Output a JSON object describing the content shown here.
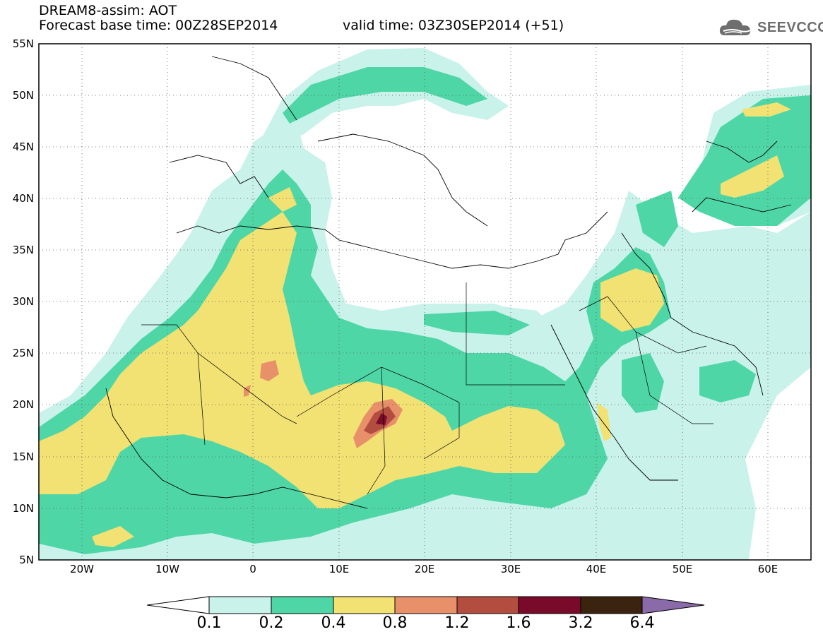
{
  "header": {
    "title_line1": "DREAM8-assim: AOT",
    "title_line2": "Forecast base time: 00Z28SEP2014",
    "valid_time": "valid time: 03Z30SEP2014 (+51)",
    "logo_text": "SEEVCCC",
    "logo_icon": "cloud-icon"
  },
  "map": {
    "lat_labels": [
      "55N",
      "50N",
      "45N",
      "40N",
      "35N",
      "30N",
      "25N",
      "20N",
      "15N",
      "10N",
      "5N"
    ],
    "lon_labels": [
      "20W",
      "10W",
      "0",
      "10E",
      "20E",
      "30E",
      "40E",
      "50E",
      "60E"
    ],
    "extent": {
      "lon_min": -25,
      "lon_max": 65,
      "lat_min": 5,
      "lat_max": 55
    }
  },
  "colorbar": {
    "labels": [
      "0.1",
      "0.2",
      "0.4",
      "0.8",
      "1.2",
      "1.6",
      "3.2",
      "6.4"
    ],
    "colors": {
      "under": "#ffffff",
      "bins": [
        "#c9f2ea",
        "#4fd6a7",
        "#f2e173",
        "#e8906a",
        "#b24d3f",
        "#7a0a2a",
        "#3a2410"
      ],
      "over": "#8a6aa8"
    }
  }
}
